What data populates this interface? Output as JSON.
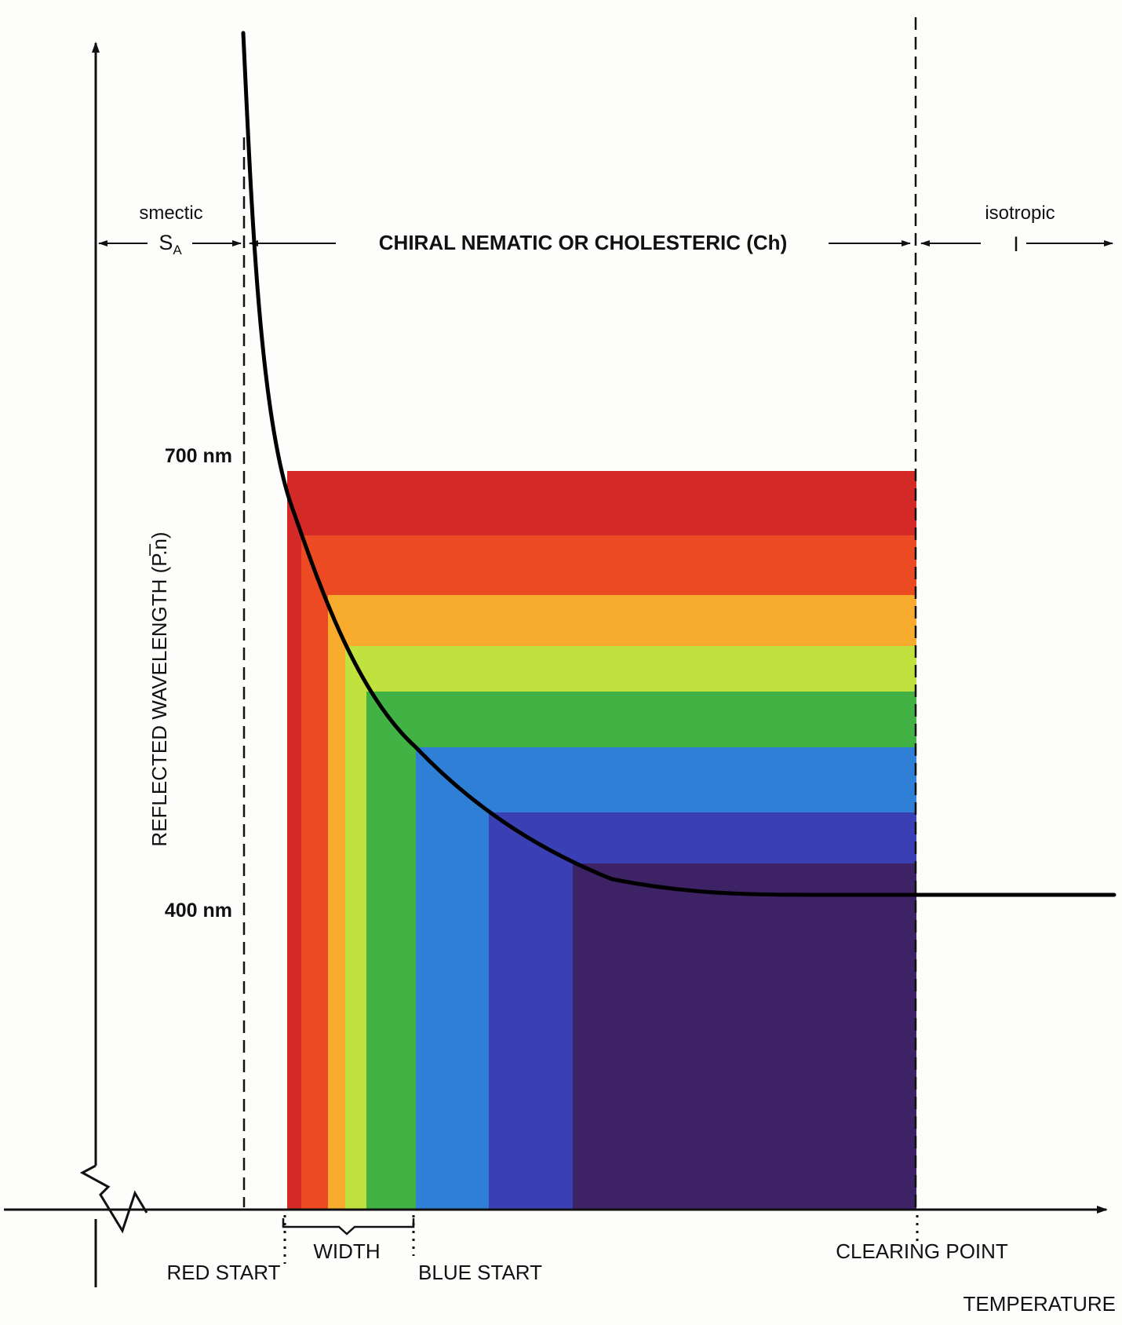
{
  "phases": {
    "smectic": {
      "name": "smectic",
      "symbol": "S",
      "subscript": "A"
    },
    "cholesteric": {
      "name": "CHIRAL NEMATIC OR CHOLESTERIC (Ch)"
    },
    "isotropic": {
      "name": "isotropic",
      "symbol": "I"
    }
  },
  "y_axis": {
    "label": "REFLECTED WAVELENGTH (P.̅n)",
    "tick_700": "700 nm",
    "tick_400": "400 nm"
  },
  "x_axis": {
    "label": "TEMPERATURE",
    "red_start": "RED START",
    "blue_start": "BLUE START",
    "width": "WIDTH",
    "clearing_point": "CLEARING POINT"
  },
  "colors": {
    "band_red": "#d42a27",
    "band_orange_red": "#ec4a22",
    "band_orange": "#f7ac2e",
    "band_yellow_green": "#bfe23e",
    "band_green": "#43b245",
    "band_blue": "#2f7fd6",
    "band_indigo": "#3a3fb3",
    "band_violet": "#3d2266",
    "curve": "#000000"
  }
}
